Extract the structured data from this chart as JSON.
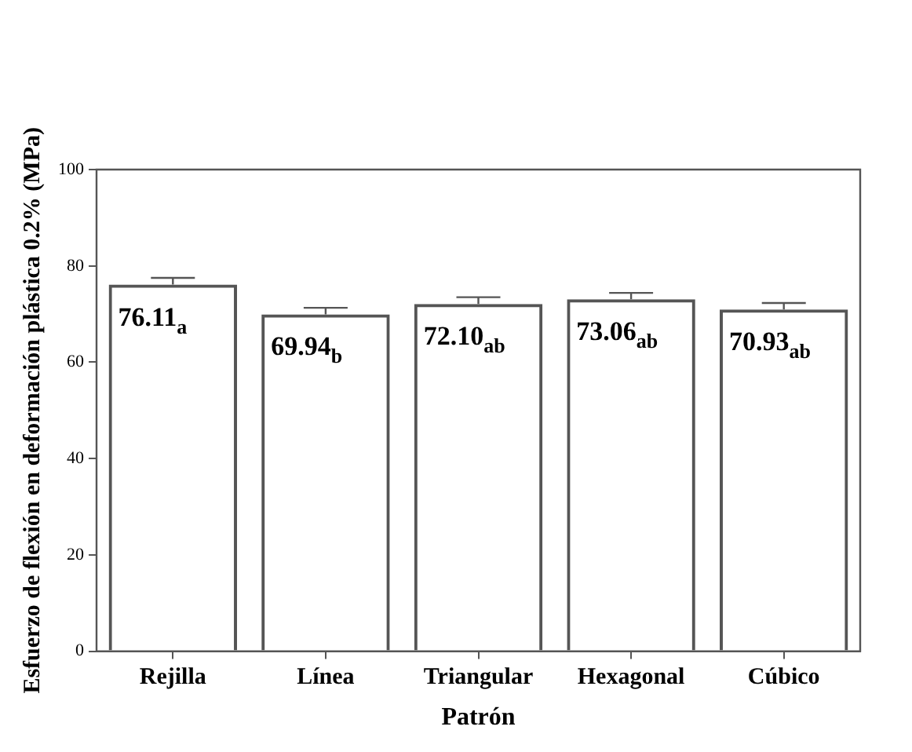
{
  "chart_data": {
    "type": "bar",
    "xlabel": "Patrón",
    "ylabel": "Esfuerzo de flexión en deformación plástica 0.2% (MPa)",
    "categories": [
      "Rejilla",
      "Línea",
      "Triangular",
      "Hexagonal",
      "Cúbico"
    ],
    "values": [
      76.11,
      69.94,
      72.1,
      73.06,
      70.93
    ],
    "errors": [
      [
        76.11,
        77.5
      ],
      [
        69.94,
        71.3
      ],
      [
        72.1,
        73.5
      ],
      [
        73.06,
        74.4
      ],
      [
        70.93,
        72.3
      ]
    ],
    "value_labels": [
      "76.11$_{a}$",
      "69.94$_{b}$",
      "72.10$_{ab}$",
      "73.06$_{ab}$",
      "70.93$_{ab}$"
    ],
    "color": "#555555",
    "ylim": [
      0,
      100
    ],
    "yticks": [
      0,
      20,
      40,
      60,
      80,
      100
    ],
    "grid": false,
    "legend": false
  }
}
